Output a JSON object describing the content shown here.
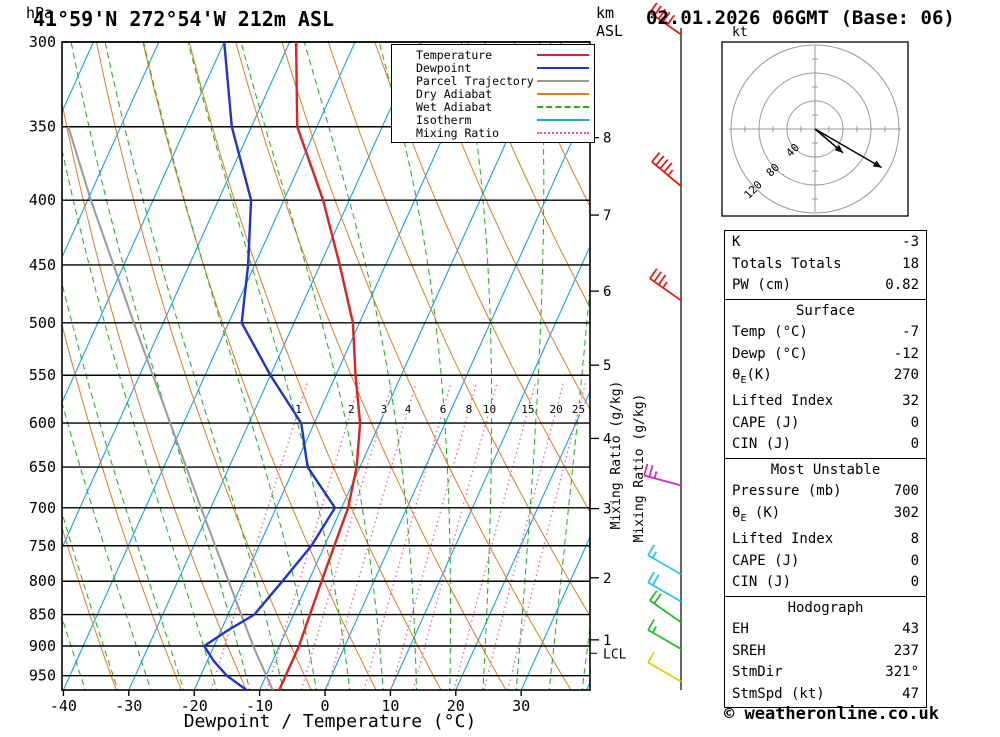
{
  "header": {
    "station": "41°59'N 272°54'W 212m ASL",
    "datetime": "02.01.2026 06GMT (Base: 06)"
  },
  "axes": {
    "pressure_unit": "hPa",
    "pressure_ticks": [
      300,
      350,
      400,
      450,
      500,
      550,
      600,
      650,
      700,
      750,
      800,
      850,
      900,
      950
    ],
    "pressure_range": [
      300,
      975
    ],
    "temp_ticks": [
      -40,
      -30,
      -20,
      -10,
      0,
      10,
      20,
      30
    ],
    "xlabel": "Dewpoint / Temperature (°C)",
    "km_label_1": "km",
    "km_label_2": "ASL",
    "km_ticks": [
      {
        "km": 8,
        "p": 357
      },
      {
        "km": 7,
        "p": 411
      },
      {
        "km": 6,
        "p": 472
      },
      {
        "km": 5,
        "p": 540
      },
      {
        "km": 4,
        "p": 617
      },
      {
        "km": 3,
        "p": 701
      },
      {
        "km": 2,
        "p": 795
      },
      {
        "km": 1,
        "p": 890
      }
    ],
    "lcl": {
      "label": "LCL",
      "p": 912
    },
    "mixing_ratio_label": "Mixing Ratio (g/kg)",
    "mixing_ratio_values": [
      1,
      2,
      3,
      4,
      6,
      8,
      10,
      15,
      20,
      25
    ]
  },
  "legend": {
    "items": [
      {
        "label": "Temperature",
        "color": "#dd2222",
        "style": "solid"
      },
      {
        "label": "Dewpoint",
        "color": "#2233cc",
        "style": "solid"
      },
      {
        "label": "Parcel Trajectory",
        "color": "#9a9a9a",
        "style": "solid"
      },
      {
        "label": "Dry Adiabat",
        "color": "#dd7d28",
        "style": "solid"
      },
      {
        "label": "Wet Adiabat",
        "color": "#22aa22",
        "style": "dashed"
      },
      {
        "label": "Isotherm",
        "color": "#1ba0e2",
        "style": "solid"
      },
      {
        "label": "Mixing Ratio",
        "color": "#ee55a0",
        "style": "dotted"
      }
    ]
  },
  "chart_data": {
    "type": "line",
    "variant": "skew-t log-p sounding",
    "skew": 0.45,
    "pressure_range": [
      300,
      975
    ],
    "isotherm_step_C": 10,
    "dry_adiabat_theta_K": {
      "from": 233,
      "to": 443,
      "step": 10
    },
    "wet_adiabat_thetaw_C": {
      "from": -45,
      "to": 40,
      "step": 5
    },
    "mixing_ratio_lines_gkg": [
      1,
      2,
      3,
      4,
      6,
      8,
      10,
      15,
      20,
      25
    ],
    "colors": {
      "isotherm": "#1ba0e2",
      "dry_adiabat": "#dd7d28",
      "wet_adiabat": "#22aa22",
      "mixing_ratio": "#ee55a0",
      "grid": "#000000"
    },
    "series": [
      {
        "name": "Temperature",
        "color": "#dd2222",
        "points": [
          [
            975,
            -7
          ],
          [
            950,
            -7
          ],
          [
            900,
            -7
          ],
          [
            850,
            -7.5
          ],
          [
            800,
            -8
          ],
          [
            750,
            -8.5
          ],
          [
            700,
            -9
          ],
          [
            650,
            -10.5
          ],
          [
            600,
            -13
          ],
          [
            550,
            -17
          ],
          [
            500,
            -21
          ],
          [
            450,
            -27
          ],
          [
            400,
            -34
          ],
          [
            350,
            -43
          ],
          [
            300,
            -49
          ]
        ]
      },
      {
        "name": "Dewpoint",
        "color": "#2233cc",
        "points": [
          [
            975,
            -12
          ],
          [
            950,
            -16
          ],
          [
            925,
            -19
          ],
          [
            900,
            -21.5
          ],
          [
            875,
            -19
          ],
          [
            850,
            -16
          ],
          [
            800,
            -14
          ],
          [
            750,
            -12
          ],
          [
            700,
            -11
          ],
          [
            650,
            -18
          ],
          [
            600,
            -22
          ],
          [
            550,
            -30
          ],
          [
            500,
            -38
          ],
          [
            450,
            -41
          ],
          [
            400,
            -45
          ],
          [
            350,
            -53
          ],
          [
            300,
            -60
          ]
        ]
      },
      {
        "name": "Parcel Trajectory",
        "color": "#9a9a9a",
        "points": [
          [
            975,
            -8
          ],
          [
            900,
            -14
          ],
          [
            850,
            -18
          ],
          [
            700,
            -31.5
          ],
          [
            500,
            -54.5
          ],
          [
            400,
            -69.5
          ],
          [
            350,
            -78
          ]
        ]
      }
    ]
  },
  "params": {
    "tables": [
      {
        "id": "indices",
        "rows": [
          [
            "K",
            "-3"
          ],
          [
            "Totals Totals",
            "18"
          ],
          [
            "PW (cm)",
            "0.82"
          ]
        ]
      },
      {
        "id": "surface",
        "title": "Surface",
        "rows": [
          [
            "Temp (°C)",
            "-7"
          ],
          [
            "Dewp (°C)",
            "-12"
          ],
          [
            "θE(K)",
            "270"
          ],
          [
            "Lifted Index",
            "32"
          ],
          [
            "CAPE (J)",
            "0"
          ],
          [
            "CIN (J)",
            "0"
          ]
        ]
      },
      {
        "id": "most-unstable",
        "title": "Most Unstable",
        "rows": [
          [
            "Pressure (mb)",
            "700"
          ],
          [
            "θE (K)",
            "302"
          ],
          [
            "Lifted Index",
            "8"
          ],
          [
            "CAPE (J)",
            "0"
          ],
          [
            "CIN (J)",
            "0"
          ]
        ]
      },
      {
        "id": "hodograph",
        "title": "Hodograph",
        "rows": [
          [
            "EH",
            "43"
          ],
          [
            "SREH",
            "237"
          ],
          [
            "StmDir",
            "321°"
          ],
          [
            "StmSpd (kt)",
            "47"
          ]
        ]
      }
    ]
  },
  "hodograph": {
    "unit": "kt",
    "rings_kt": [
      40,
      80,
      120
    ],
    "vectors_kt": [
      [
        40,
        -34
      ],
      [
        95,
        -55
      ]
    ]
  },
  "wind_barbs": [
    [
      296,
      "#ee1111",
      305,
      5,
      0
    ],
    [
      390,
      "#ee1111",
      310,
      4,
      1
    ],
    [
      480,
      "#ee1111",
      305,
      3,
      1
    ],
    [
      672,
      "#cc22cc",
      285,
      2,
      1
    ],
    [
      790,
      "#22c6e0",
      300,
      1,
      1
    ],
    [
      830,
      "#22c6e0",
      300,
      2,
      0
    ],
    [
      862,
      "#22bb22",
      305,
      2,
      0
    ],
    [
      905,
      "#22bb22",
      300,
      1,
      1
    ],
    [
      960,
      "#e0d000",
      300,
      1,
      0
    ]
  ],
  "footer": {
    "copyright": "© weatheronline.co.uk"
  }
}
